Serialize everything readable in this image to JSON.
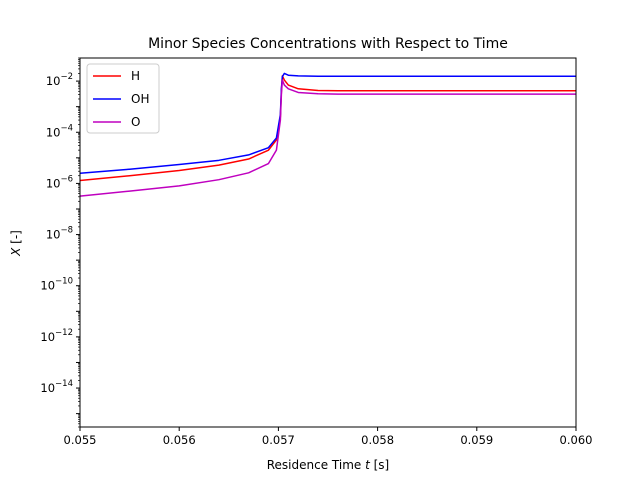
{
  "chart_data": {
    "type": "line",
    "title": "Minor Species Concentrations with Respect to Time",
    "xlabel": "Residence Time t [s]",
    "xlabel_parts": {
      "pre": "Residence Time ",
      "var": "t",
      "post": " [s]"
    },
    "ylabel": "X [-]",
    "ylabel_parts": {
      "var": "X",
      "post": " [-]"
    },
    "xlim": [
      0.055,
      0.06
    ],
    "ylim": [
      3e-16,
      0.08
    ],
    "yscale": "log",
    "grid": false,
    "legend_position": "top-left",
    "x_ticks": [
      "0.055",
      "0.056",
      "0.057",
      "0.058",
      "0.059",
      "0.060"
    ],
    "x_tick_values": [
      0.055,
      0.056,
      0.057,
      0.058,
      0.059,
      0.06
    ],
    "y_ticks": [
      {
        "exp": -14,
        "label": "10",
        "sup": "−14"
      },
      {
        "exp": -12,
        "label": "10",
        "sup": "−12"
      },
      {
        "exp": -10,
        "label": "10",
        "sup": "−10"
      },
      {
        "exp": -8,
        "label": "10",
        "sup": "−8"
      },
      {
        "exp": -6,
        "label": "10",
        "sup": "−6"
      },
      {
        "exp": -4,
        "label": "10",
        "sup": "−4"
      },
      {
        "exp": -2,
        "label": "10",
        "sup": "−2"
      }
    ],
    "series": [
      {
        "name": "H",
        "color": "#ff0000",
        "x": [
          0.055,
          0.0555,
          0.056,
          0.0564,
          0.0567,
          0.0569,
          0.05698,
          0.05702,
          0.05703,
          0.05704,
          0.05706,
          0.0571,
          0.0572,
          0.0574,
          0.0576,
          0.058,
          0.059,
          0.06
        ],
        "y": [
          1.3e-06,
          2e-06,
          3.2e-06,
          5.2e-06,
          9e-06,
          2e-05,
          5e-05,
          0.0004,
          0.004,
          0.016,
          0.011,
          0.007,
          0.005,
          0.0043,
          0.0042,
          0.0042,
          0.0042,
          0.0042
        ]
      },
      {
        "name": "OH",
        "color": "#0000ff",
        "x": [
          0.055,
          0.0555,
          0.056,
          0.0564,
          0.0567,
          0.0569,
          0.05698,
          0.05702,
          0.05703,
          0.05704,
          0.05706,
          0.0571,
          0.0572,
          0.0574,
          0.0576,
          0.058,
          0.059,
          0.06
        ],
        "y": [
          2.5e-06,
          3.6e-06,
          5.5e-06,
          8e-06,
          1.3e-05,
          2.5e-05,
          6e-05,
          0.0005,
          0.005,
          0.015,
          0.02,
          0.017,
          0.016,
          0.0155,
          0.0155,
          0.0155,
          0.0155,
          0.0155
        ]
      },
      {
        "name": "O",
        "color": "#bf00bf",
        "x": [
          0.055,
          0.0555,
          0.056,
          0.0564,
          0.0567,
          0.0569,
          0.05698,
          0.05702,
          0.05703,
          0.05704,
          0.05706,
          0.0571,
          0.0572,
          0.0574,
          0.0576,
          0.058,
          0.059,
          0.06
        ],
        "y": [
          3.2e-07,
          5e-07,
          8e-07,
          1.4e-06,
          2.6e-06,
          6e-06,
          2e-05,
          0.0003,
          0.003,
          0.011,
          0.007,
          0.005,
          0.0036,
          0.0032,
          0.0031,
          0.0031,
          0.0031,
          0.0031
        ]
      }
    ]
  }
}
